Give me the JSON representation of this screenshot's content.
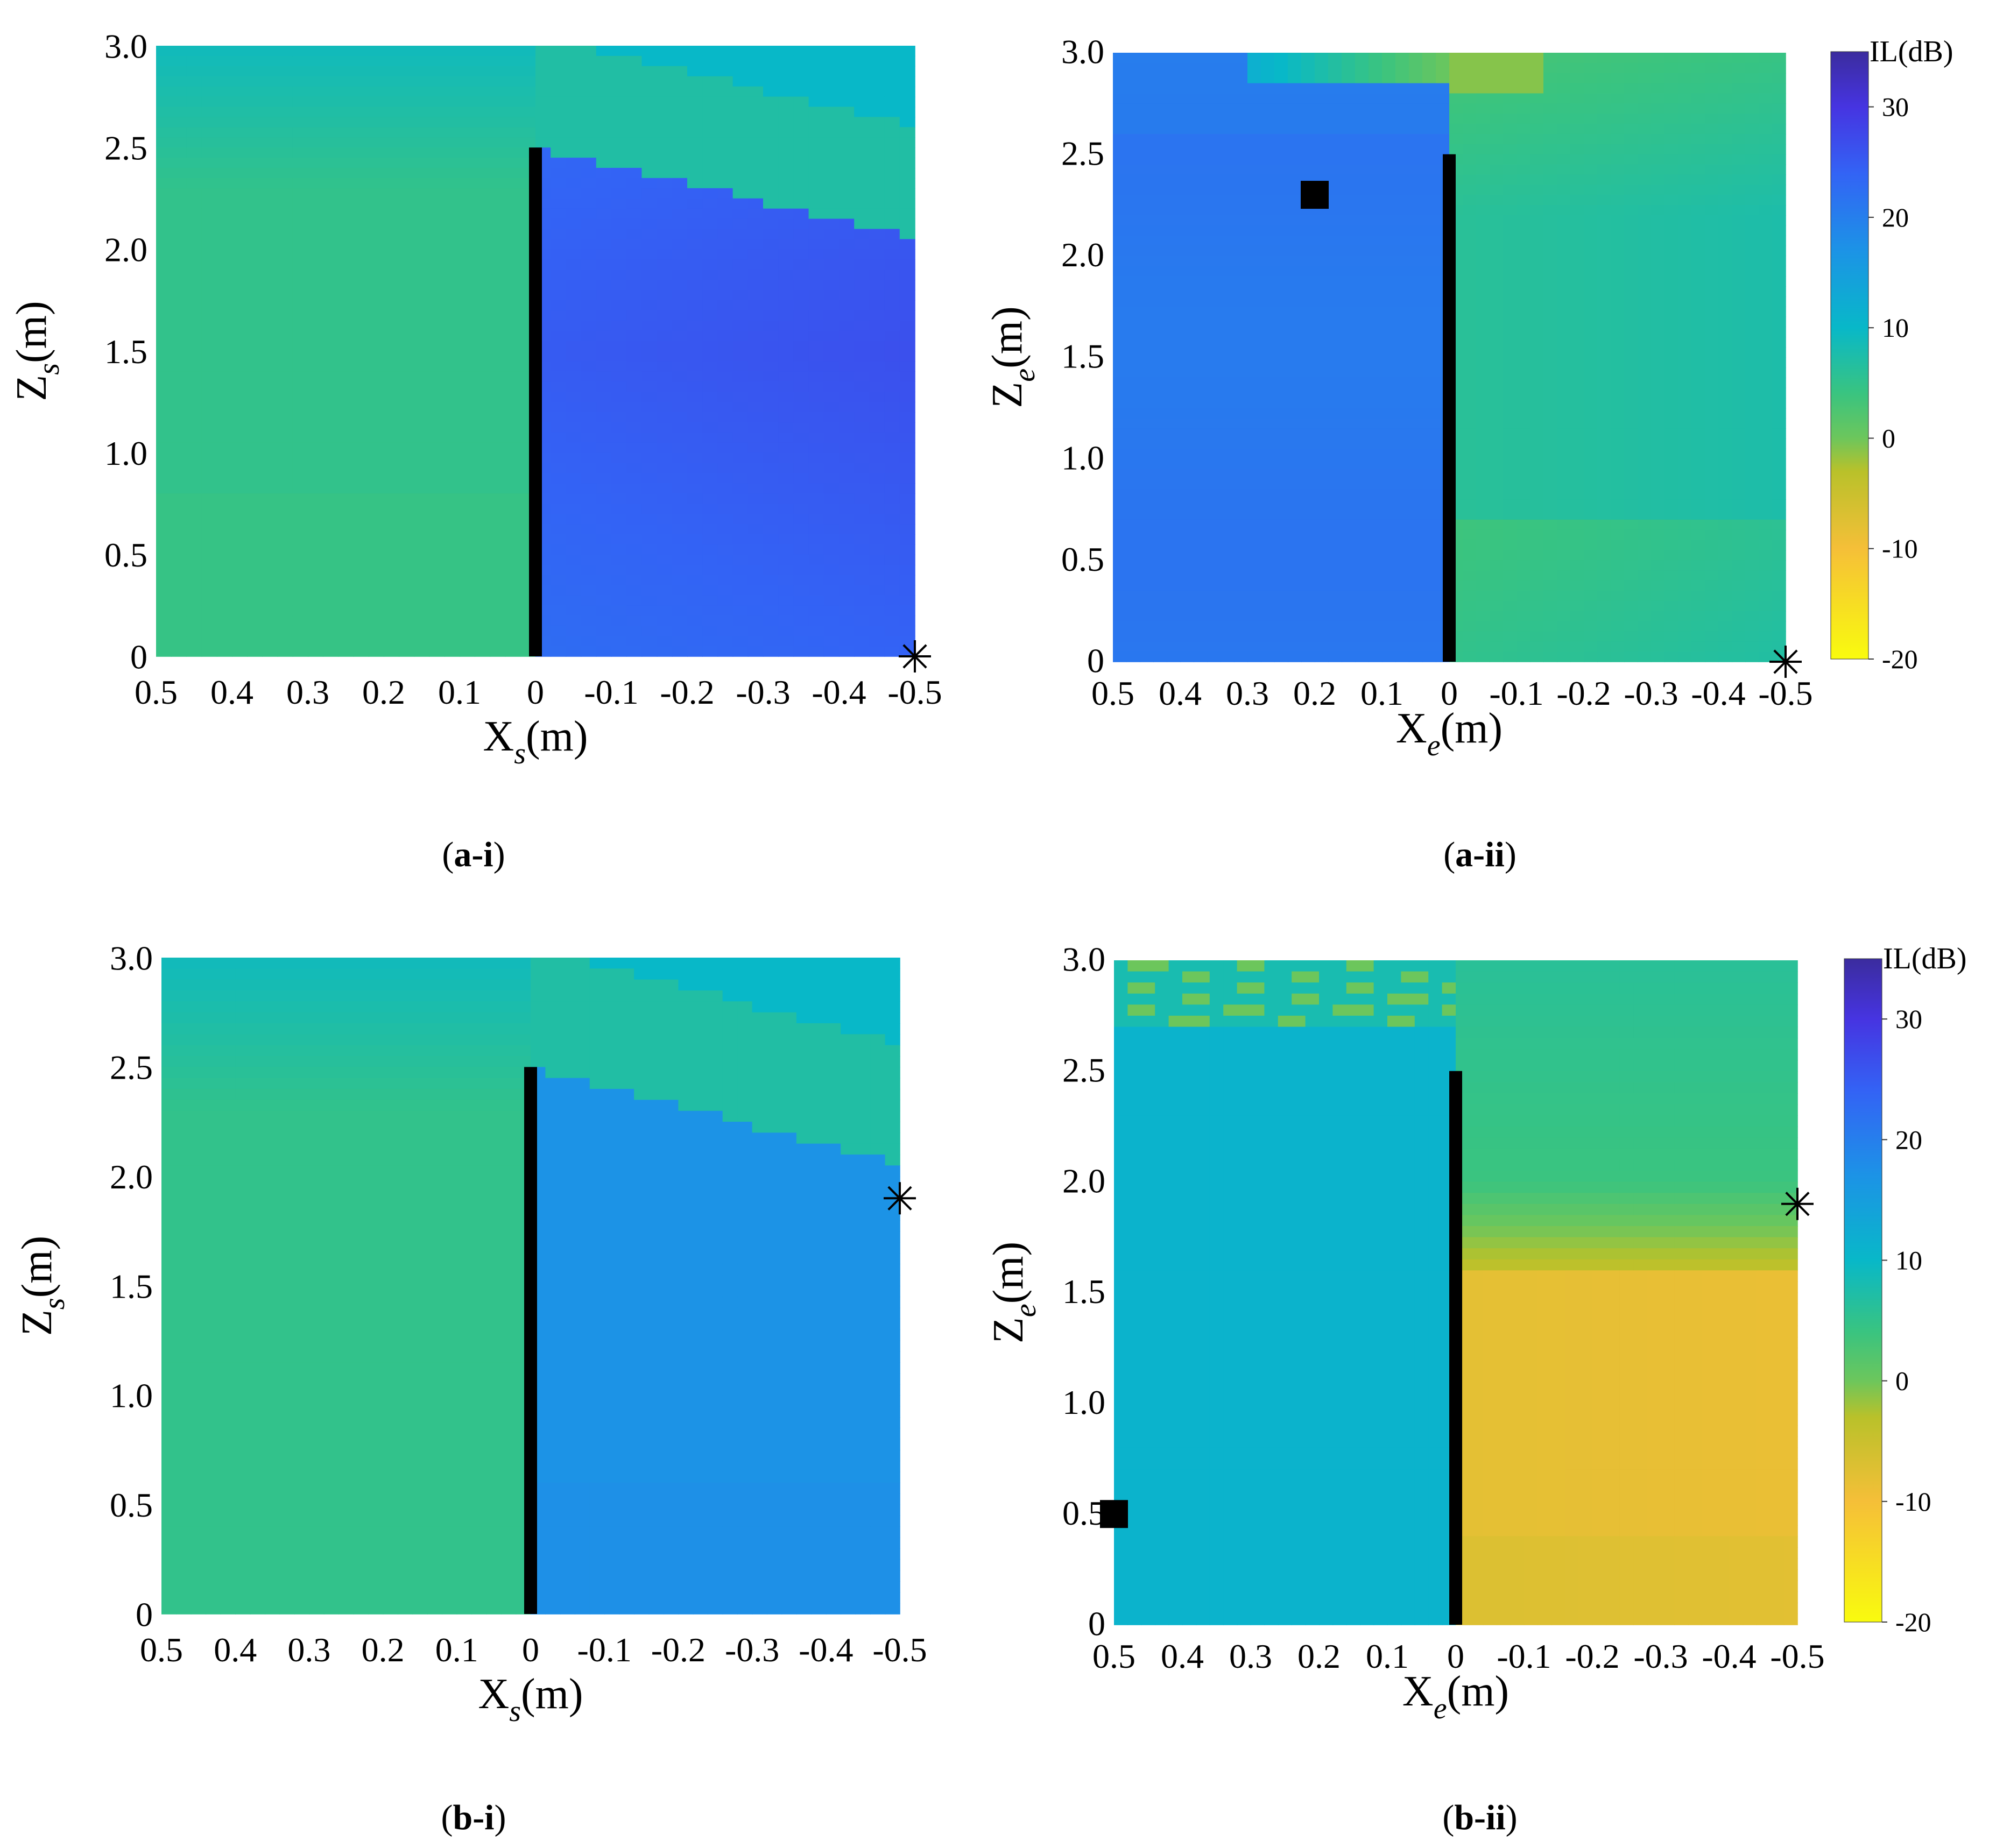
{
  "colors": {
    "barrier": "#000000",
    "background": "#ffffff"
  },
  "colormap": {
    "name": "parula",
    "stops": [
      {
        "v": -20,
        "c": "#f9fb0e"
      },
      {
        "v": -10,
        "c": "#f5bf38"
      },
      {
        "v": -3,
        "c": "#b9c12a"
      },
      {
        "v": 0,
        "c": "#6cc65c"
      },
      {
        "v": 4,
        "c": "#3ac47f"
      },
      {
        "v": 10,
        "c": "#08b8c8"
      },
      {
        "v": 17,
        "c": "#1c93e6"
      },
      {
        "v": 24,
        "c": "#3363f5"
      },
      {
        "v": 30,
        "c": "#4634e1"
      },
      {
        "v": 35,
        "c": "#3b2c9e"
      }
    ]
  },
  "chart_data": [
    {
      "id": "a-i",
      "type": "heatmap",
      "caption_letter": "a-i",
      "xlabel": {
        "main": "X",
        "sub": "s",
        "unit": "(m)"
      },
      "ylabel": {
        "main": "Z",
        "sub": "s",
        "unit": "(m)"
      },
      "x_ticks": [
        "0.5",
        "0.4",
        "0.3",
        "0.2",
        "0.1",
        "0",
        "-0.1",
        "-0.2",
        "-0.3",
        "-0.4",
        "-0.5"
      ],
      "y_ticks": [
        "0",
        "0.5",
        "1.0",
        "1.5",
        "2.0",
        "2.5",
        "3.0"
      ],
      "xlim": [
        0.5,
        -0.5
      ],
      "ylim": [
        0,
        3.0
      ],
      "barrier": {
        "x": 0,
        "z_top": 2.5
      },
      "markers": [
        {
          "symbol": "asterisk",
          "x": -0.5,
          "z": 0
        }
      ],
      "regions": {
        "left_IL": 5,
        "top_left_IL": 9,
        "right_IL": 25,
        "right_top_IL": 7,
        "shadow_top_at_left_edge": 2.5,
        "shadow_top_at_right_edge": 2.05
      }
    },
    {
      "id": "a-ii",
      "type": "heatmap",
      "caption_letter": "a-ii",
      "xlabel": {
        "main": "X",
        "sub": "e",
        "unit": "(m)"
      },
      "ylabel": {
        "main": "Z",
        "sub": "e",
        "unit": "(m)"
      },
      "x_ticks": [
        "0.5",
        "0.4",
        "0.3",
        "0.2",
        "0.1",
        "0",
        "-0.1",
        "-0.2",
        "-0.3",
        "-0.4",
        "-0.5"
      ],
      "y_ticks": [
        "0",
        "0.5",
        "1.0",
        "1.5",
        "2.0",
        "2.5",
        "3.0"
      ],
      "xlim": [
        0.5,
        -0.5
      ],
      "ylim": [
        0,
        3.0
      ],
      "barrier": {
        "x": 0,
        "z_top": 2.5
      },
      "markers": [
        {
          "symbol": "square",
          "x": 0.2,
          "z": 2.3
        },
        {
          "symbol": "asterisk",
          "x": -0.5,
          "z": 0
        }
      ],
      "regions": {
        "left_IL": 21,
        "right_IL": 6,
        "top_right_IL": 3,
        "top_left_IL": 19
      }
    },
    {
      "id": "b-i",
      "type": "heatmap",
      "caption_letter": "b-i",
      "xlabel": {
        "main": "X",
        "sub": "s",
        "unit": "(m)"
      },
      "ylabel": {
        "main": "Z",
        "sub": "s",
        "unit": "(m)"
      },
      "x_ticks": [
        "0.5",
        "0.4",
        "0.3",
        "0.2",
        "0.1",
        "0",
        "-0.1",
        "-0.2",
        "-0.3",
        "-0.4",
        "-0.5"
      ],
      "y_ticks": [
        "0",
        "0.5",
        "1.0",
        "1.5",
        "2.0",
        "2.5",
        "3.0"
      ],
      "xlim": [
        0.5,
        -0.5
      ],
      "ylim": [
        0,
        3.0
      ],
      "barrier": {
        "x": 0,
        "z_top": 2.5
      },
      "markers": [
        {
          "symbol": "asterisk",
          "x": -0.5,
          "z": 1.9
        }
      ],
      "regions": {
        "left_IL": 5,
        "top_left_IL": 9,
        "right_IL": 17,
        "right_top_IL": 6,
        "shadow_top_at_left_edge": 2.5,
        "shadow_top_at_right_edge": 2.05
      }
    },
    {
      "id": "b-ii",
      "type": "heatmap",
      "caption_letter": "b-ii",
      "xlabel": {
        "main": "X",
        "sub": "e",
        "unit": "(m)"
      },
      "ylabel": {
        "main": "Z",
        "sub": "e",
        "unit": "(m)"
      },
      "x_ticks": [
        "0.5",
        "0.4",
        "0.3",
        "0.2",
        "0.1",
        "0",
        "-0.1",
        "-0.2",
        "-0.3",
        "-0.4",
        "-0.5"
      ],
      "y_ticks": [
        "0",
        "0.5",
        "1.0",
        "1.5",
        "2.0",
        "2.5",
        "3.0"
      ],
      "xlim": [
        0.5,
        -0.5
      ],
      "ylim": [
        0,
        3.0
      ],
      "barrier": {
        "x": 0,
        "z_top": 2.5
      },
      "markers": [
        {
          "symbol": "square",
          "x": 0.5,
          "z": 0.5
        },
        {
          "symbol": "asterisk",
          "x": -0.5,
          "z": 1.9
        }
      ],
      "regions": {
        "left_IL": 11,
        "right_IL": -8,
        "top_right_IL": 4
      }
    }
  ],
  "colorbars": [
    {
      "for": "a-ii",
      "title": "IL(dB)",
      "range": [
        -20,
        35
      ],
      "ticks": [
        "30",
        "20",
        "10",
        "0",
        "-10",
        "-20"
      ]
    },
    {
      "for": "b-ii",
      "title": "IL(dB)",
      "range": [
        -20,
        35
      ],
      "ticks": [
        "30",
        "20",
        "10",
        "0",
        "-10",
        "-20"
      ]
    }
  ],
  "captions": [
    "(a-i)",
    "(a-ii)",
    "(b-i)",
    "(b-ii)"
  ]
}
